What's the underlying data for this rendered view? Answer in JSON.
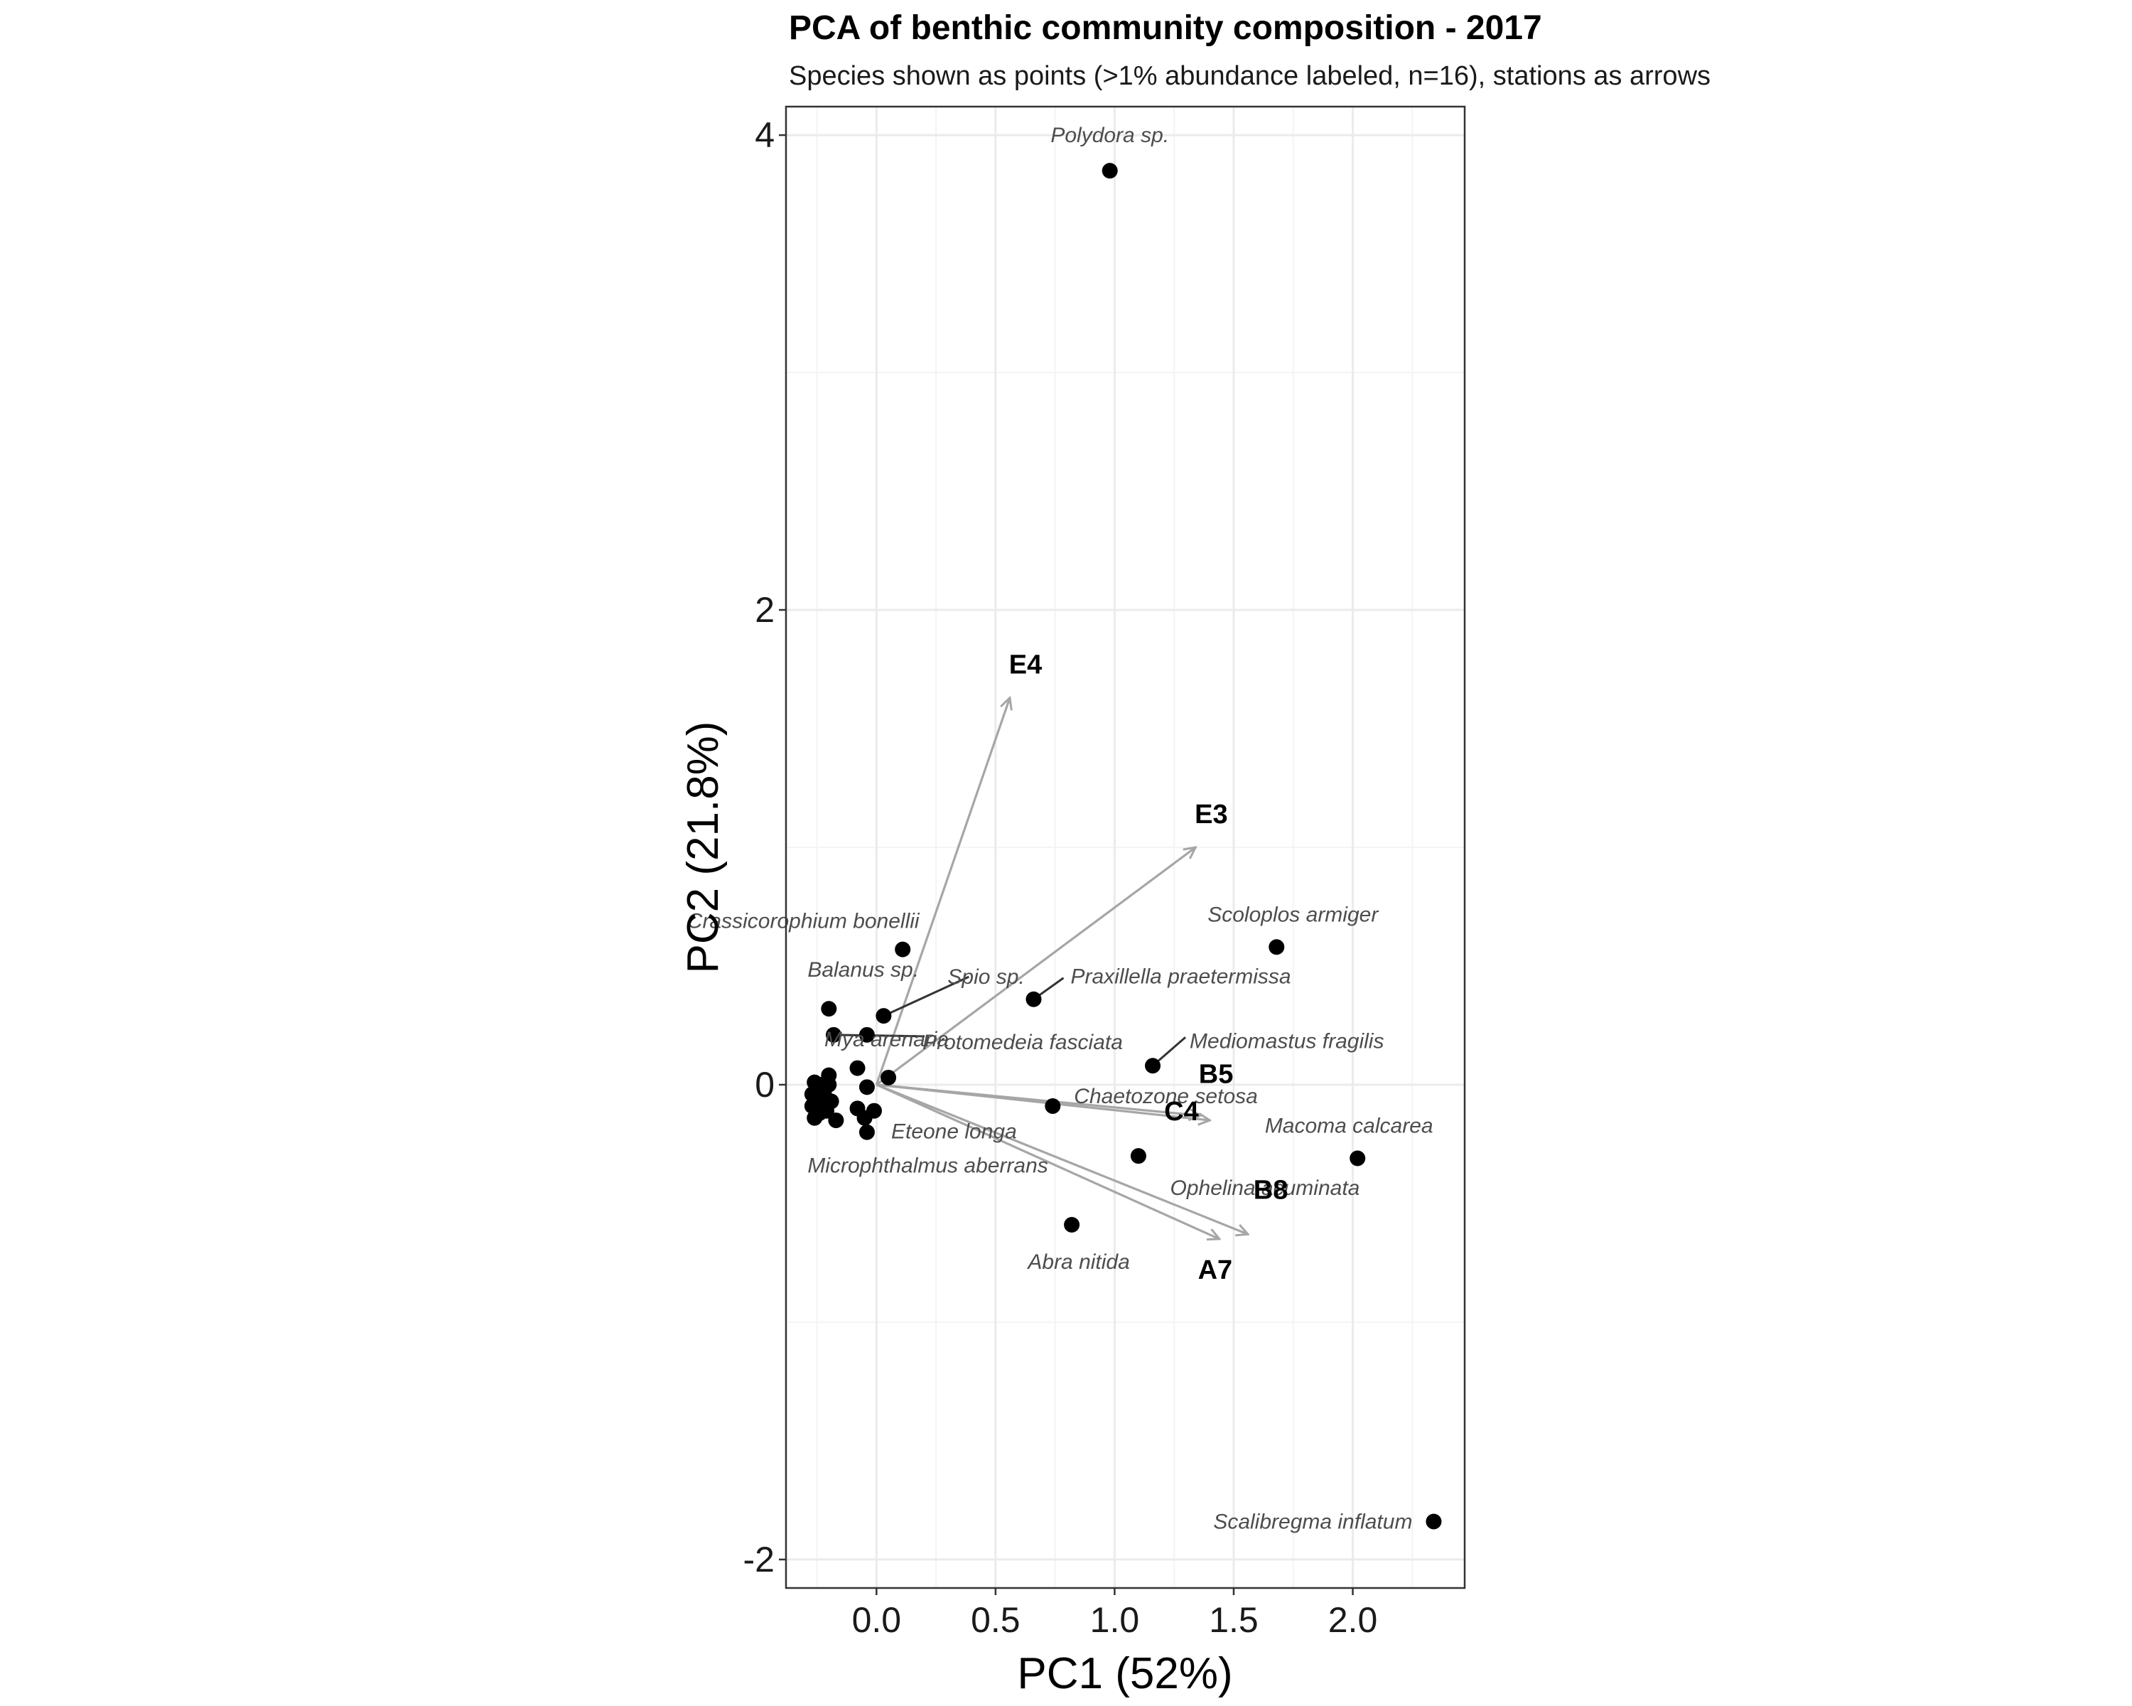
{
  "chart_data": {
    "type": "scatter",
    "title": "PCA of benthic community composition - 2017",
    "subtitle": "Species shown as points (>1% abundance labeled, n=16), stations as arrows",
    "xlabel": "PC1 (52%)",
    "ylabel": "PC2 (21.8%)",
    "xlim": [
      -0.38,
      2.47
    ],
    "ylim": [
      -2.12,
      4.12
    ],
    "xticks": [
      0.0,
      0.5,
      1.0,
      1.5,
      2.0
    ],
    "xtick_labels": [
      "0.0",
      "0.5",
      "1.0",
      "1.5",
      "2.0"
    ],
    "yticks": [
      -2,
      0,
      2,
      4
    ],
    "ytick_labels": [
      "-2",
      "0",
      "2",
      "4"
    ],
    "grid": true,
    "colors": {
      "points": "#000000",
      "arrows": "#a6a6a6",
      "species_label": "#4d4d4d",
      "leader_line": "#333333",
      "grid": "#ebebeb",
      "panel_border": "#333333"
    },
    "labeled_species": [
      {
        "name": "Polydora sp.",
        "x": 0.98,
        "y": 3.85
      },
      {
        "name": "Crassicorophium bonellii",
        "x": 0.11,
        "y": 0.57
      },
      {
        "name": "Scoloplos armiger",
        "x": 1.68,
        "y": 0.58
      },
      {
        "name": "Spio sp.",
        "x": 0.03,
        "y": 0.29
      },
      {
        "name": "Balanus sp.",
        "x": -0.2,
        "y": 0.32
      },
      {
        "name": "Praxillella praetermissa",
        "x": 0.66,
        "y": 0.36
      },
      {
        "name": "Mya arenaria",
        "x": -0.18,
        "y": 0.21
      },
      {
        "name": "Protomedeia fasciata",
        "x": 0.05,
        "y": 0.03
      },
      {
        "name": "Mediomastus fragilis",
        "x": 1.16,
        "y": 0.08
      },
      {
        "name": "Chaetozone setosa",
        "x": 0.74,
        "y": -0.09
      },
      {
        "name": "Eteone longa",
        "x": -0.01,
        "y": -0.11
      },
      {
        "name": "Macoma calcarea",
        "x": 2.02,
        "y": -0.31
      },
      {
        "name": "Microphthalmus aberrans",
        "x": -0.2,
        "y": 0.04
      },
      {
        "name": "Ophelina acuminata",
        "x": 1.1,
        "y": -0.3
      },
      {
        "name": "Abra nitida",
        "x": 0.82,
        "y": -0.59
      },
      {
        "name": "Scalibregma inflatum",
        "x": 2.34,
        "y": -1.84
      }
    ],
    "unlabeled_species": [
      {
        "x": -0.04,
        "y": 0.21
      },
      {
        "x": -0.08,
        "y": 0.07
      },
      {
        "x": -0.04,
        "y": -0.01
      },
      {
        "x": -0.26,
        "y": 0.01
      },
      {
        "x": -0.23,
        "y": 0.0
      },
      {
        "x": -0.2,
        "y": 0.0
      },
      {
        "x": -0.27,
        "y": -0.04
      },
      {
        "x": -0.25,
        "y": -0.07
      },
      {
        "x": -0.22,
        "y": -0.04
      },
      {
        "x": -0.19,
        "y": -0.07
      },
      {
        "x": -0.27,
        "y": -0.09
      },
      {
        "x": -0.24,
        "y": -0.12
      },
      {
        "x": -0.21,
        "y": -0.11
      },
      {
        "x": -0.17,
        "y": -0.15
      },
      {
        "x": -0.08,
        "y": -0.1
      },
      {
        "x": -0.05,
        "y": -0.14
      },
      {
        "x": -0.04,
        "y": -0.2
      },
      {
        "x": -0.26,
        "y": -0.14
      }
    ],
    "stations": [
      {
        "name": "E4",
        "x": 0.56,
        "y": 1.63
      },
      {
        "name": "E3",
        "x": 1.34,
        "y": 1.0
      },
      {
        "name": "B5",
        "x": 1.36,
        "y": -0.13
      },
      {
        "name": "C4",
        "x": 1.4,
        "y": -0.15
      },
      {
        "name": "B8",
        "x": 1.56,
        "y": -0.63
      },
      {
        "name": "A7",
        "x": 1.44,
        "y": -0.65
      }
    ]
  }
}
